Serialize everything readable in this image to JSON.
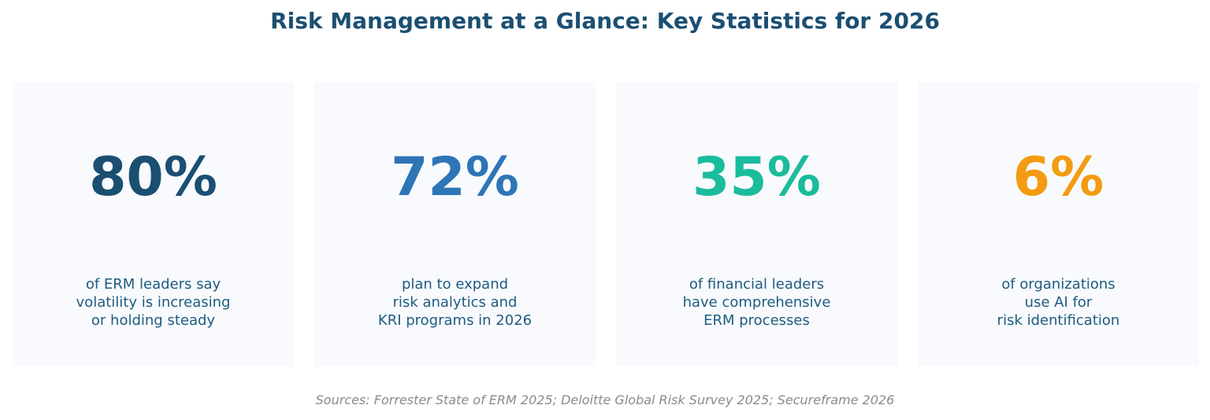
{
  "title": "Risk Management at a Glance: Key Statistics for 2026",
  "chart_data": {
    "type": "table",
    "title": "Risk Management at a Glance: Key Statistics for 2026",
    "items": [
      {
        "stat": "80%",
        "value": 80,
        "label": "of ERM leaders say\nvolatility is increasing\nor holding steady",
        "color": "#1b4f72"
      },
      {
        "stat": "72%",
        "value": 72,
        "label": "plan to expand\nrisk analytics and\nKRI programs in 2026",
        "color": "#2e75b6"
      },
      {
        "stat": "35%",
        "value": 35,
        "label": "of financial leaders\nhave comprehensive\nERM processes",
        "color": "#1abc9c"
      },
      {
        "stat": "6%",
        "value": 6,
        "label": "of organizations\nuse AI for\nrisk identification",
        "color": "#f39c12"
      }
    ]
  },
  "source": "Sources: Forrester State of ERM 2025; Deloitte Global Risk Survey 2025; Secureframe 2026"
}
